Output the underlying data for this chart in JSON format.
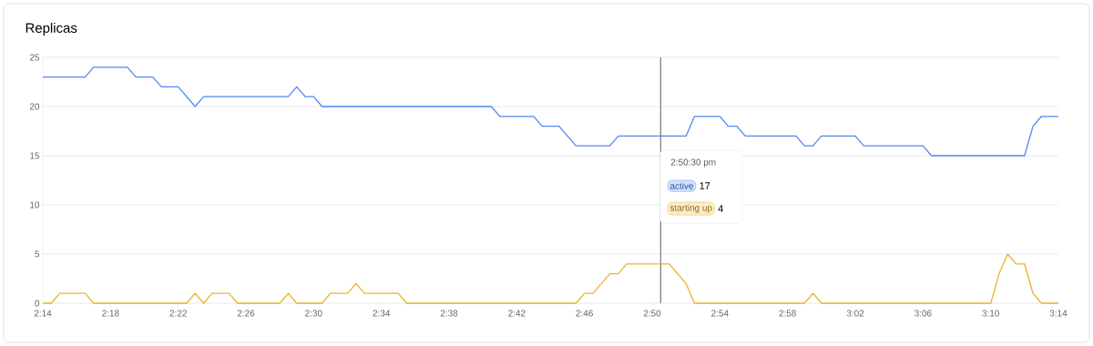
{
  "chart_data": {
    "type": "line",
    "title": "Replicas",
    "xlim": [
      2.23333,
      3.23333
    ],
    "ylim": [
      0,
      25
    ],
    "xticks": [
      {
        "value": 2.23333,
        "label": "2:14"
      },
      {
        "value": 2.3,
        "label": "2:18"
      },
      {
        "value": 2.36667,
        "label": "2:22"
      },
      {
        "value": 2.43333,
        "label": "2:26"
      },
      {
        "value": 2.5,
        "label": "2:30"
      },
      {
        "value": 2.56667,
        "label": "2:34"
      },
      {
        "value": 2.63333,
        "label": "2:38"
      },
      {
        "value": 2.7,
        "label": "2:42"
      },
      {
        "value": 2.76667,
        "label": "2:46"
      },
      {
        "value": 2.83333,
        "label": "2:50"
      },
      {
        "value": 2.9,
        "label": "2:54"
      },
      {
        "value": 2.96667,
        "label": "2:58"
      },
      {
        "value": 3.03333,
        "label": "3:02"
      },
      {
        "value": 3.1,
        "label": "3:06"
      },
      {
        "value": 3.16667,
        "label": "3:10"
      },
      {
        "value": 3.23333,
        "label": "3:14"
      }
    ],
    "yticks": [
      0,
      5,
      10,
      15,
      20,
      25
    ],
    "grid": "y",
    "marker": "none",
    "line_style": "solid",
    "legend": "center",
    "series": [
      {
        "name": "active",
        "color": "#4e87f5",
        "x": [
          2.23333,
          2.275,
          2.2833,
          2.3167,
          2.325,
          2.3417,
          2.35,
          2.3667,
          2.3833,
          2.3917,
          2.475,
          2.4833,
          2.4917,
          2.5,
          2.5083,
          2.675,
          2.6833,
          2.7167,
          2.725,
          2.7417,
          2.7583,
          2.7917,
          2.8,
          2.8667,
          2.875,
          2.9,
          2.9083,
          2.9167,
          2.925,
          2.975,
          2.9833,
          2.9917,
          3.0,
          3.0333,
          3.0417,
          3.1,
          3.1083,
          3.2,
          3.2083,
          3.2167,
          3.2333
        ],
        "values": [
          23,
          23,
          24,
          24,
          23,
          23,
          22,
          22,
          20,
          21,
          21,
          22,
          21,
          21,
          20,
          20,
          19,
          19,
          18,
          18,
          16,
          16,
          17,
          17,
          19,
          19,
          18,
          18,
          17,
          17,
          16,
          16,
          17,
          17,
          16,
          16,
          15,
          15,
          18,
          19,
          19
        ]
      },
      {
        "name": "starting up",
        "color": "#eab42a",
        "x": [
          2.23333,
          2.2417,
          2.25,
          2.275,
          2.2833,
          2.375,
          2.3833,
          2.3917,
          2.4,
          2.4167,
          2.425,
          2.4667,
          2.475,
          2.4833,
          2.5083,
          2.5167,
          2.5333,
          2.5417,
          2.55,
          2.5833,
          2.5917,
          2.7583,
          2.7667,
          2.775,
          2.7917,
          2.8,
          2.8083,
          2.85,
          2.8667,
          2.875,
          2.9833,
          2.9917,
          3.0,
          3.1667,
          3.175,
          3.1833,
          3.1917,
          3.2,
          3.2083,
          3.2167,
          3.2333
        ],
        "values": [
          0,
          0,
          1,
          1,
          0,
          0,
          1,
          0,
          1,
          1,
          0,
          0,
          1,
          0,
          0,
          1,
          1,
          2,
          1,
          1,
          0,
          0,
          1,
          1,
          3,
          3,
          4,
          4,
          2,
          0,
          0,
          1,
          0,
          0,
          3,
          5,
          4,
          4,
          1,
          0,
          0
        ]
      }
    ],
    "ref_lines": [
      {
        "axis": "x",
        "value": 2.84167,
        "color": "#333333"
      }
    ],
    "annotations": [
      "2:50:30 pm",
      "17",
      "4"
    ]
  }
}
